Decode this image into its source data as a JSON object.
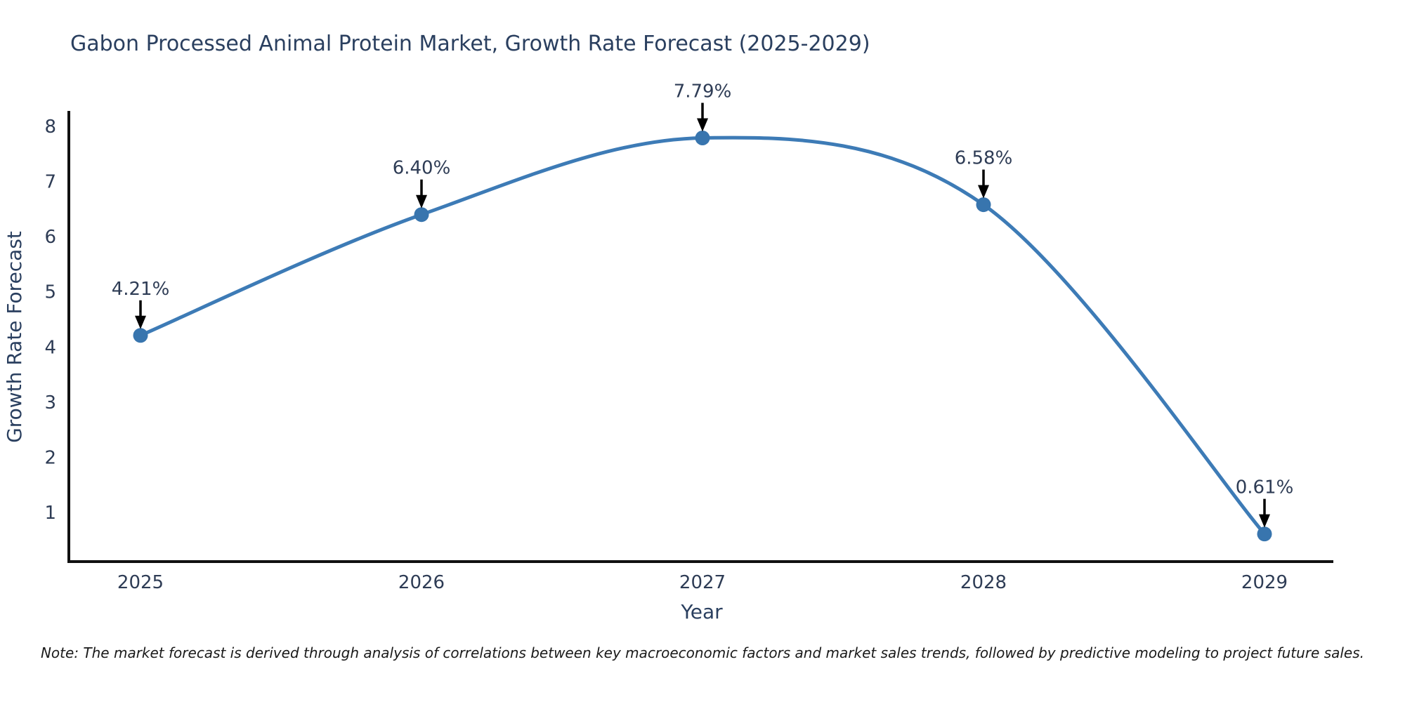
{
  "title": "Gabon Processed Animal Protein Market, Growth Rate Forecast (2025-2029)",
  "note": "Note: The market forecast is derived through analysis of correlations between key macroeconomic factors and market sales trends, followed by predictive modeling to project future sales.",
  "chart_data": {
    "type": "line",
    "line_shape": "spline",
    "title": "Gabon Processed Animal Protein Market, Growth Rate Forecast (2025-2029)",
    "xlabel": "Year",
    "ylabel": "Growth Rate Forecast",
    "categories": [
      "2025",
      "2026",
      "2027",
      "2028",
      "2029"
    ],
    "values": [
      4.21,
      6.4,
      7.79,
      6.58,
      0.61
    ],
    "point_labels": [
      "4.21%",
      "6.40%",
      "7.79%",
      "6.58%",
      "0.61%"
    ],
    "yticks": [
      1,
      2,
      3,
      4,
      5,
      6,
      7,
      8
    ],
    "ylim": [
      0.1,
      8.3
    ],
    "grid": false,
    "legend": false,
    "annotation_style": "black-down-arrows",
    "colors": {
      "line": "#3d7bb6",
      "marker": "#3875ae",
      "axis": "#111111",
      "text": "#2e3c55",
      "title": "#2a3f5f",
      "arrow": "#000000",
      "note": "#1a1a1a",
      "background": "#ffffff"
    }
  }
}
